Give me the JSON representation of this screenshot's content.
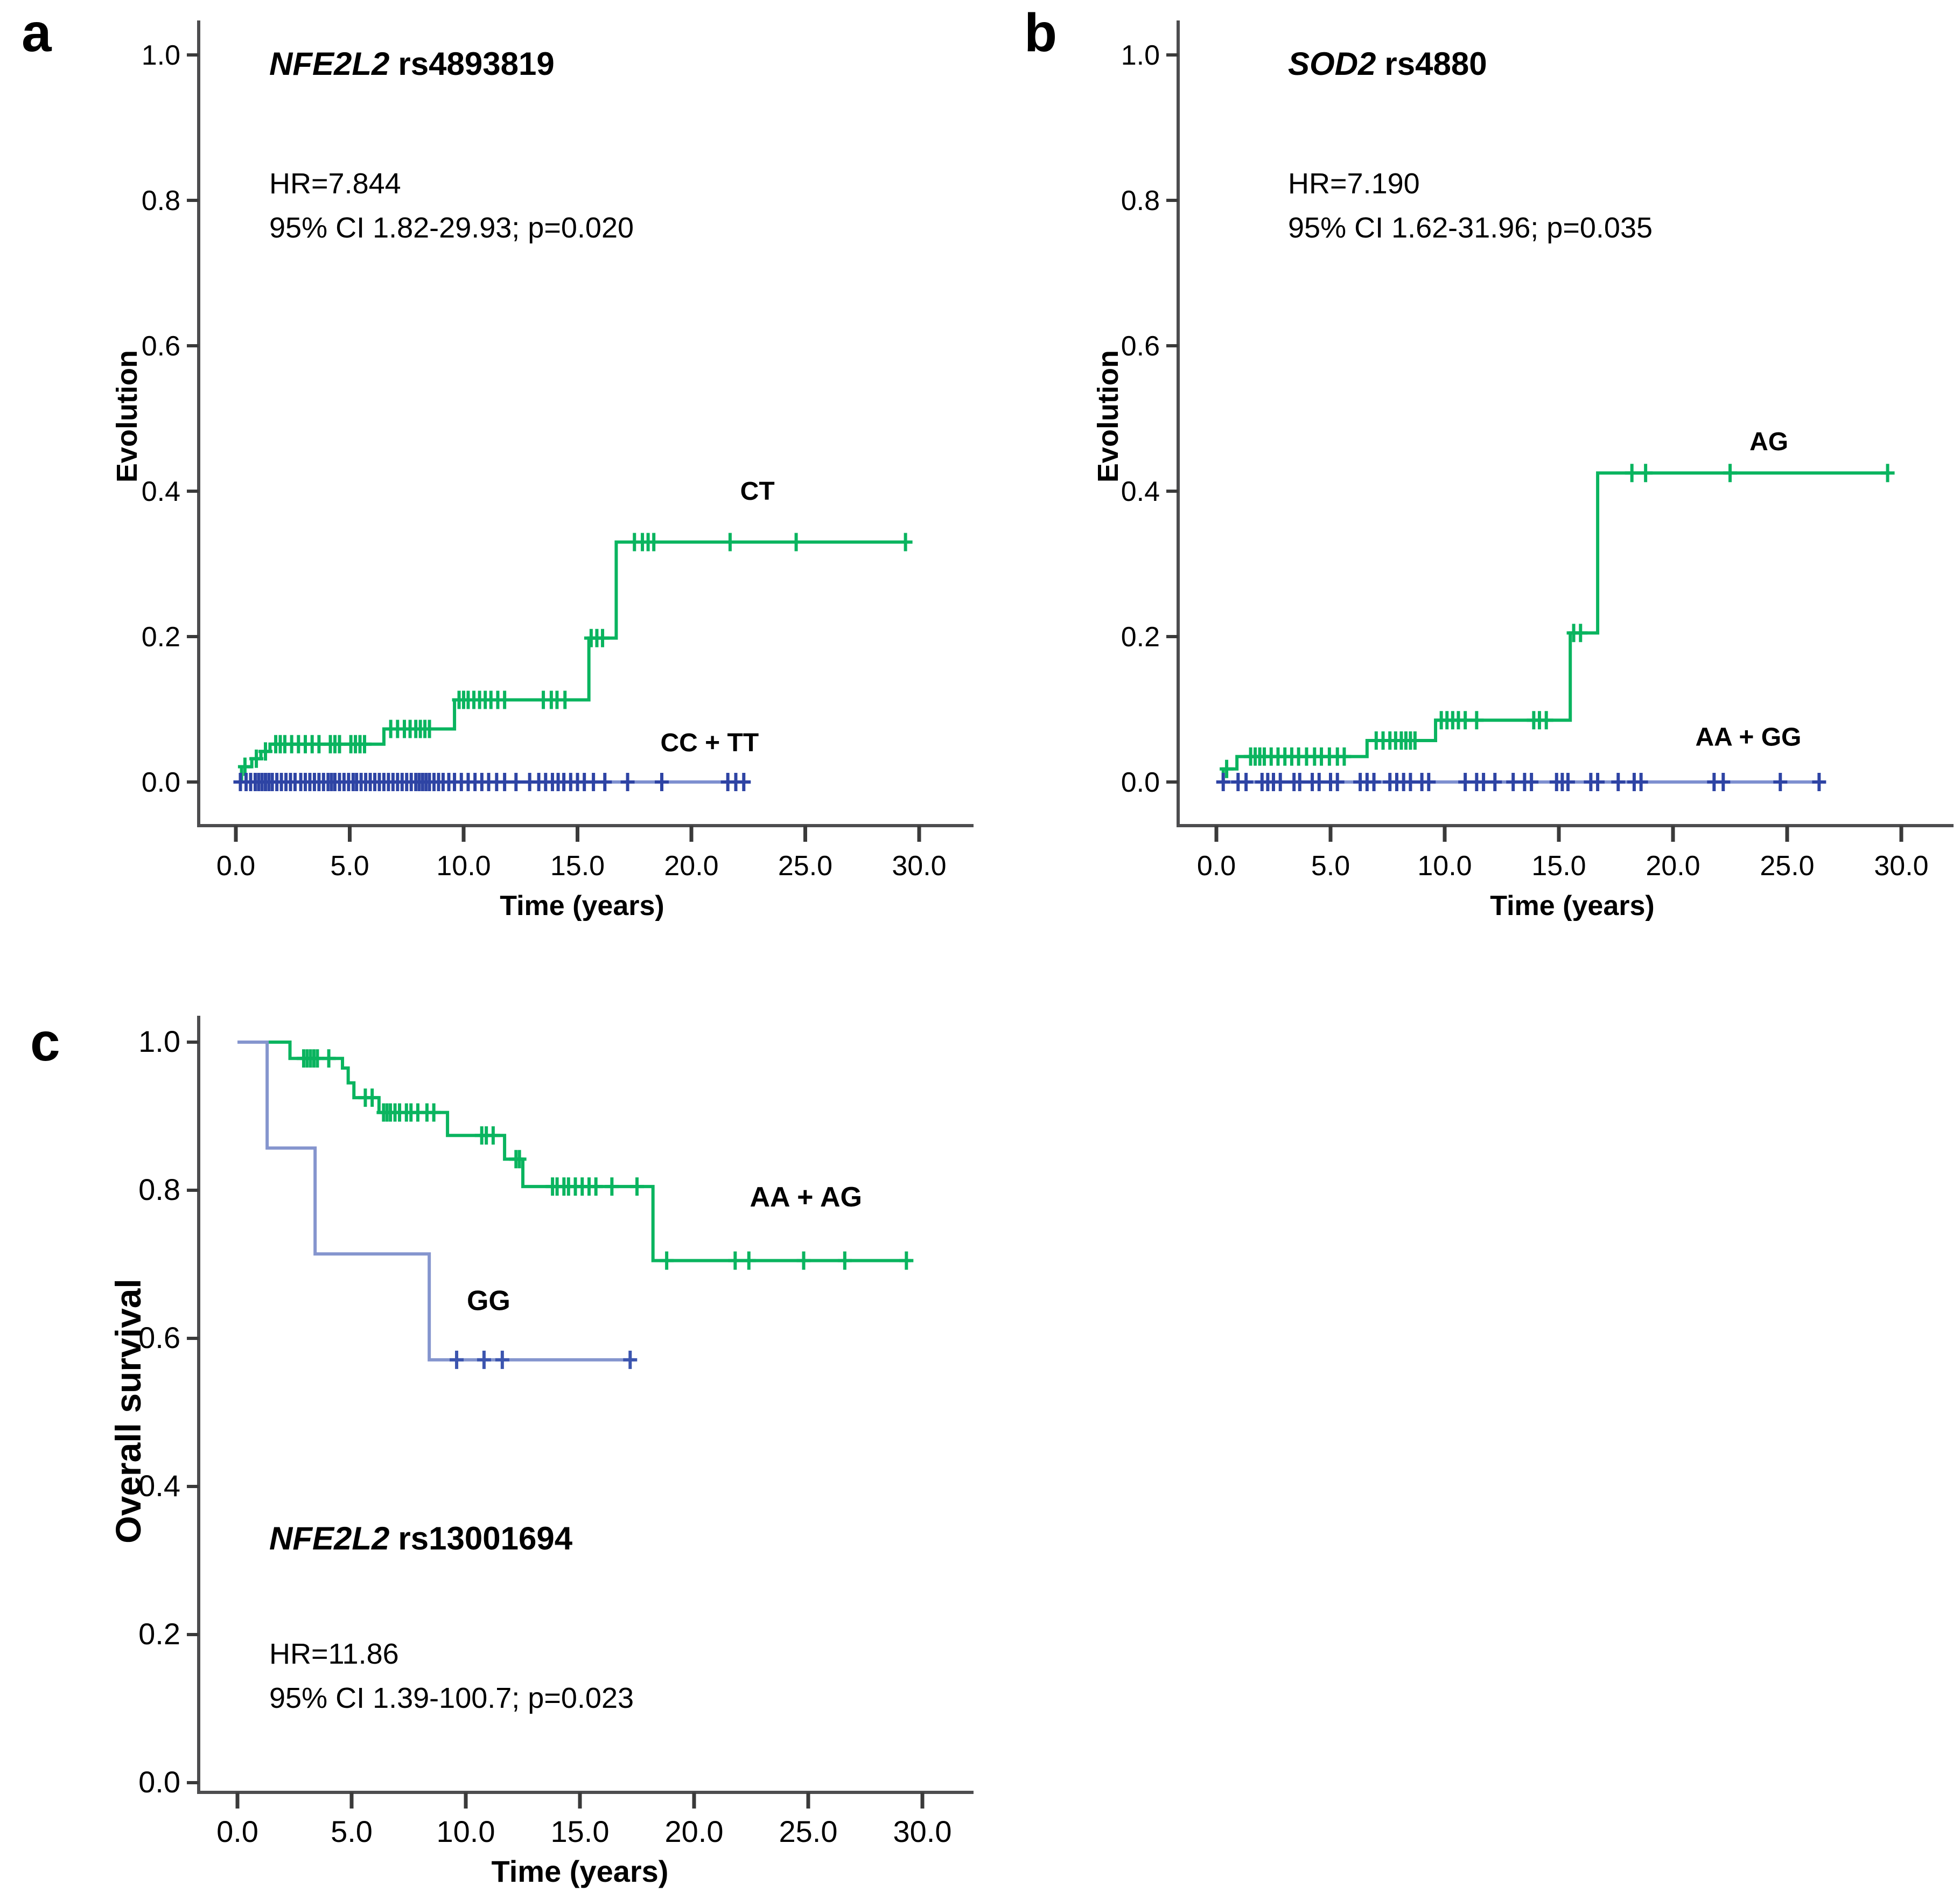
{
  "figure": {
    "background": "#ffffff",
    "axis_color": "#4d4d4f",
    "text_color": "#000000"
  },
  "chart_data": [
    {
      "id": "a",
      "type": "line",
      "letter": "a",
      "title": {
        "gene": "NFE2L2",
        "variant": "rs4893819"
      },
      "stats": [
        "HR=7.844",
        "95% CI 1.82-29.93; p=0.020"
      ],
      "xlabel": "Time (years)",
      "ylabel": "Evolution",
      "xlim": [
        0,
        30
      ],
      "ylim": [
        0,
        1
      ],
      "grid": false,
      "x_ticks": [
        {
          "v": 0,
          "label": "0.0"
        },
        {
          "v": 5,
          "label": "5.0"
        },
        {
          "v": 10,
          "label": "10.0"
        },
        {
          "v": 15,
          "label": "15.0"
        },
        {
          "v": 20,
          "label": "20.0"
        },
        {
          "v": 25,
          "label": "25.0"
        },
        {
          "v": 30,
          "label": "30.0"
        }
      ],
      "y_ticks": [
        {
          "v": 0.0,
          "label": "0.0"
        },
        {
          "v": 0.2,
          "label": "0.2"
        },
        {
          "v": 0.4,
          "label": "0.4"
        },
        {
          "v": 0.6,
          "label": "0.6"
        },
        {
          "v": 0.8,
          "label": "0.8"
        },
        {
          "v": 1.0,
          "label": "1.0"
        }
      ],
      "series": [
        {
          "name": "CT",
          "label": "CT",
          "label_x": 22.9,
          "label_y": 0.4,
          "color": "#0ab45f",
          "censor_color": "#0ab45f",
          "start_t": 0.15,
          "start_v": 0,
          "end_t": 29.5,
          "steps": [
            [
              0.25,
              0.021
            ],
            [
              0.7,
              0.032
            ],
            [
              1.1,
              0.042
            ],
            [
              1.5,
              0.052
            ],
            [
              6.5,
              0.073
            ],
            [
              9.6,
              0.113
            ],
            [
              15.5,
              0.198
            ],
            [
              16.7,
              0.33
            ]
          ],
          "censors": [
            0.4,
            0.9,
            1.3,
            1.75,
            1.95,
            2.15,
            2.45,
            2.75,
            3.05,
            3.35,
            3.65,
            4.15,
            4.35,
            4.55,
            5.05,
            5.25,
            5.45,
            5.65,
            6.8,
            7.1,
            7.4,
            7.65,
            7.9,
            8.1,
            8.3,
            8.5,
            9.8,
            10.0,
            10.2,
            10.45,
            10.7,
            10.95,
            11.2,
            11.5,
            11.8,
            13.5,
            13.85,
            14.1,
            14.45,
            15.6,
            15.85,
            16.1,
            17.5,
            17.85,
            18.1,
            18.35,
            21.7,
            24.6,
            29.4
          ]
        },
        {
          "name": "CC + TT",
          "label": "CC + TT",
          "label_x": 20.8,
          "label_y": 0.054,
          "color": "#7e90d0",
          "censor_color": "#2e44a4",
          "start_t": 0.1,
          "start_v": 0,
          "end_t": 22.4,
          "steps": [],
          "censors": [
            0.2,
            0.45,
            0.65,
            0.85,
            1.0,
            1.15,
            1.3,
            1.45,
            1.6,
            1.8,
            2.0,
            2.2,
            2.4,
            2.6,
            2.85,
            3.05,
            3.25,
            3.45,
            3.65,
            3.85,
            4.05,
            4.2,
            4.35,
            4.55,
            4.75,
            4.95,
            5.15,
            5.3,
            5.5,
            5.7,
            5.9,
            6.1,
            6.3,
            6.5,
            6.7,
            6.9,
            7.1,
            7.3,
            7.5,
            7.7,
            7.9,
            8.05,
            8.2,
            8.35,
            8.5,
            8.7,
            8.9,
            9.1,
            9.35,
            9.6,
            9.9,
            10.2,
            10.5,
            10.8,
            11.1,
            11.45,
            11.8,
            12.3,
            12.9,
            13.3,
            13.6,
            13.9,
            14.15,
            14.4,
            14.7,
            15.0,
            15.3,
            15.7,
            16.2,
            17.2,
            18.7,
            21.6,
            21.95,
            22.3
          ]
        }
      ]
    },
    {
      "id": "b",
      "type": "line",
      "letter": "b",
      "title": {
        "gene": "SOD2",
        "variant": "rs4880"
      },
      "stats": [
        "HR=7.190",
        "95% CI 1.62-31.96; p=0.035"
      ],
      "xlabel": "Time (years)",
      "ylabel": "Evolution",
      "xlim": [
        0,
        30
      ],
      "ylim": [
        0,
        1
      ],
      "grid": false,
      "x_ticks": [
        {
          "v": 0,
          "label": "0.0"
        },
        {
          "v": 5,
          "label": "5.0"
        },
        {
          "v": 10,
          "label": "10.0"
        },
        {
          "v": 15,
          "label": "15.0"
        },
        {
          "v": 20,
          "label": "20.0"
        },
        {
          "v": 25,
          "label": "25.0"
        },
        {
          "v": 30,
          "label": "30.0"
        }
      ],
      "y_ticks": [
        {
          "v": 0.0,
          "label": "0.0"
        },
        {
          "v": 0.2,
          "label": "0.2"
        },
        {
          "v": 0.4,
          "label": "0.4"
        },
        {
          "v": 0.6,
          "label": "0.6"
        },
        {
          "v": 0.8,
          "label": "0.8"
        },
        {
          "v": 1.0,
          "label": "1.0"
        }
      ],
      "series": [
        {
          "name": "AG",
          "label": "AG",
          "label_x": 24.2,
          "label_y": 0.468,
          "color": "#0ab45f",
          "censor_color": "#0ab45f",
          "start_t": 0.15,
          "start_v": 0,
          "end_t": 29.5,
          "steps": [
            [
              0.3,
              0.018
            ],
            [
              0.9,
              0.035
            ],
            [
              6.6,
              0.057
            ],
            [
              9.6,
              0.085
            ],
            [
              15.5,
              0.205
            ],
            [
              16.7,
              0.425
            ]
          ],
          "censors": [
            0.45,
            1.5,
            1.7,
            1.9,
            2.1,
            2.4,
            2.7,
            3.0,
            3.3,
            3.6,
            3.95,
            4.3,
            4.6,
            4.95,
            5.3,
            5.6,
            7.0,
            7.3,
            7.6,
            7.85,
            8.1,
            8.3,
            8.5,
            8.7,
            9.85,
            10.1,
            10.35,
            10.6,
            10.9,
            11.4,
            13.9,
            14.15,
            14.45,
            15.65,
            15.95,
            18.2,
            18.8,
            22.5,
            29.4
          ]
        },
        {
          "name": "AA + GG",
          "label": "AA + GG",
          "label_x": 23.3,
          "label_y": 0.062,
          "color": "#7e90d0",
          "censor_color": "#2e44a4",
          "start_t": 0.1,
          "start_v": 0,
          "end_t": 26.5,
          "steps": [],
          "censors": [
            0.3,
            0.95,
            1.3,
            2.0,
            2.25,
            2.5,
            2.8,
            3.4,
            3.65,
            4.2,
            4.5,
            5.0,
            5.3,
            6.3,
            6.6,
            6.9,
            7.6,
            7.9,
            8.2,
            8.5,
            9.0,
            9.3,
            10.9,
            11.4,
            11.7,
            12.2,
            13.0,
            13.5,
            13.8,
            14.9,
            15.15,
            15.4,
            16.4,
            16.7,
            17.6,
            18.3,
            18.6,
            21.8,
            22.2,
            24.7,
            26.4
          ]
        }
      ]
    },
    {
      "id": "c",
      "type": "line",
      "letter": "c",
      "title": {
        "gene": "NFE2L2",
        "variant": "rs13001694"
      },
      "stats": [
        "HR=11.86",
        "95% CI 1.39-100.7; p=0.023"
      ],
      "xlabel": "Time (years)",
      "ylabel": "Overall survival",
      "xlim": [
        0,
        30
      ],
      "ylim": [
        0,
        1
      ],
      "grid": false,
      "x_ticks": [
        {
          "v": 0,
          "label": "0.0"
        },
        {
          "v": 5,
          "label": "5.0"
        },
        {
          "v": 10,
          "label": "10.0"
        },
        {
          "v": 15,
          "label": "15.0"
        },
        {
          "v": 20,
          "label": "20.0"
        },
        {
          "v": 25,
          "label": "25.0"
        },
        {
          "v": 30,
          "label": "30.0"
        }
      ],
      "y_ticks": [
        {
          "v": 0.0,
          "label": "0.0"
        },
        {
          "v": 0.2,
          "label": "0.2"
        },
        {
          "v": 0.4,
          "label": "0.4"
        },
        {
          "v": 0.6,
          "label": "0.6"
        },
        {
          "v": 0.8,
          "label": "0.8"
        },
        {
          "v": 1.0,
          "label": "1.0"
        }
      ],
      "series": [
        {
          "name": "AA + AG",
          "label": "AA + AG",
          "label_x": 24.9,
          "label_y": 0.79,
          "color": "#0ab45f",
          "censor_color": "#0ab45f",
          "start_t": 0,
          "start_v": 1.0,
          "end_t": 29.5,
          "steps": [
            [
              2.3,
              0.978
            ],
            [
              4.6,
              0.965
            ],
            [
              4.85,
              0.945
            ],
            [
              5.1,
              0.925
            ],
            [
              6.2,
              0.905
            ],
            [
              9.2,
              0.874
            ],
            [
              11.7,
              0.842
            ],
            [
              12.5,
              0.805
            ],
            [
              18.2,
              0.705
            ]
          ],
          "censors": [
            2.9,
            3.05,
            3.2,
            3.35,
            3.5,
            4.0,
            5.6,
            5.9,
            6.4,
            6.55,
            6.7,
            6.9,
            7.1,
            7.4,
            7.6,
            7.9,
            8.3,
            8.6,
            10.7,
            10.9,
            11.2,
            12.2,
            12.35,
            13.8,
            14.0,
            14.3,
            14.5,
            14.8,
            15.1,
            15.4,
            15.7,
            16.4,
            17.5,
            18.8,
            21.8,
            22.4,
            24.8,
            26.6,
            29.3
          ]
        },
        {
          "name": "GG",
          "label": "GG",
          "label_x": 11.0,
          "label_y": 0.65,
          "color": "#8595ce",
          "censor_color": "#3c55af",
          "start_t": 0,
          "start_v": 1.0,
          "end_t": 17.4,
          "steps": [
            [
              1.3,
              0.857
            ],
            [
              3.4,
              0.714
            ],
            [
              8.4,
              0.571
            ]
          ],
          "censors": [
            9.6,
            10.8,
            11.6,
            17.2
          ]
        }
      ]
    }
  ],
  "overlay": {
    "a_letter": "a",
    "b_letter": "b",
    "c_letter": "c"
  }
}
